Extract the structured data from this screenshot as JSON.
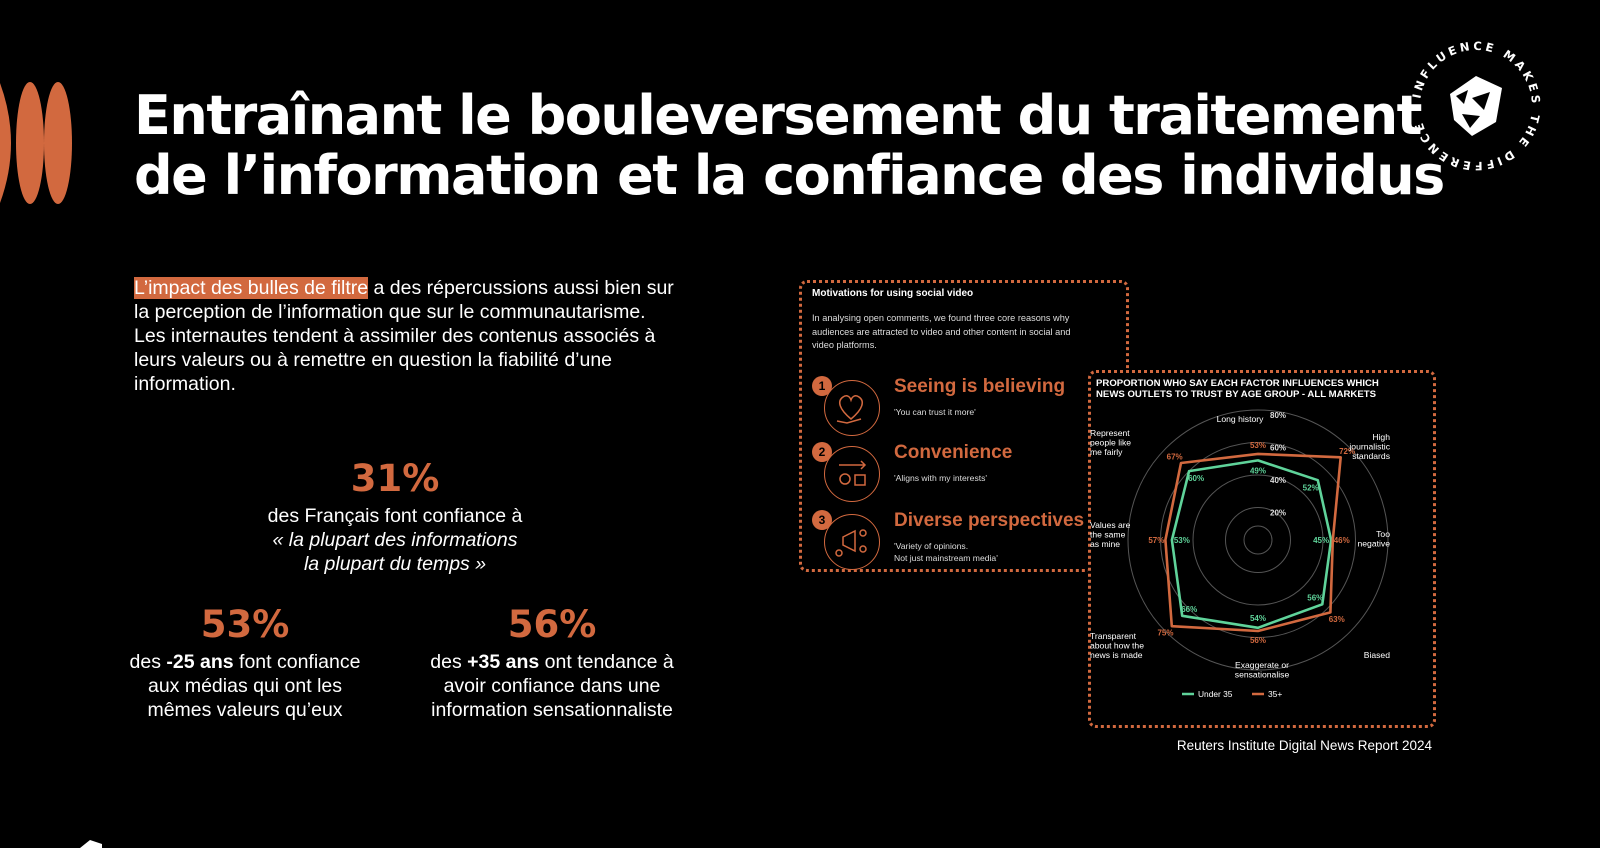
{
  "title": {
    "line1": "Entraînant le bouleversement du traitement",
    "line2": "de l’information et la confiance des individus"
  },
  "badge": {
    "ring_text": "INFLUENCE MAKES THE DIFFERENCE"
  },
  "intro": {
    "highlight": "L’impact des bulles de filtre",
    "line1": " a des répercussions aussi bien sur",
    "line2": "la perception de l’information que sur le communautarisme.",
    "line3": "Les internautes tendent à assimiler des contenus associés à",
    "line4": "leurs valeurs ou à remettre en question la fiabilité d’une",
    "line5": "information."
  },
  "stats": [
    {
      "value": "31%",
      "lines": [
        "des Français font confiance à",
        "« la plupart des informations",
        "la plupart du temps »"
      ]
    },
    {
      "value": "53%",
      "pre": "des ",
      "bold": "-25 ans",
      "post": " font confiance",
      "lines": [
        "aux médias qui ont les",
        "mêmes valeurs qu’eux"
      ]
    },
    {
      "value": "56%",
      "pre": "des ",
      "bold": "+35 ans",
      "post": " ont tendance à",
      "lines": [
        "avoir confiance dans une",
        "information sensationnaliste"
      ]
    }
  ],
  "motivations": {
    "title": "Motivations for using social video",
    "desc_lines": [
      "In analysing open comments, we found three core reasons why",
      "audiences are attracted to video and other content in social and",
      "video platforms."
    ],
    "reasons": [
      {
        "num": "1",
        "title": "Seeing is believing",
        "quote": [
          "'You can trust it more'"
        ],
        "icon": "heart-hand-icon"
      },
      {
        "num": "2",
        "title": "Convenience",
        "quote": [
          "'Aligns with my interests'"
        ],
        "icon": "exchange-people-icon"
      },
      {
        "num": "3",
        "title": "Diverse perspectives",
        "quote": [
          "'Variety of opinions.",
          "Not just mainstream media'"
        ],
        "icon": "megaphone-people-icon"
      }
    ]
  },
  "chart_data": {
    "type": "radar",
    "title": [
      "PROPORTION WHO SAY EACH FACTOR INFLUENCES WHICH",
      "NEWS OUTLETS TO TRUST BY AGE GROUP - ALL MARKETS"
    ],
    "axes": [
      {
        "label": [
          "Long history"
        ]
      },
      {
        "label": [
          "High",
          "journalistic",
          "standards"
        ]
      },
      {
        "label": [
          "Too",
          "negative"
        ]
      },
      {
        "label": [
          "Biased"
        ]
      },
      {
        "label": [
          "Exaggerate or",
          "sensationalise"
        ]
      },
      {
        "label": [
          "Transparent",
          "about how the",
          "news is made"
        ]
      },
      {
        "label": [
          "Values are",
          "the same",
          "as mine"
        ]
      },
      {
        "label": [
          "Represent",
          "people like",
          "me fairly"
        ]
      }
    ],
    "ring_values": [
      20,
      40,
      60,
      80
    ],
    "ring_labels": [
      "20%",
      "40%",
      "60%",
      "80%"
    ],
    "series": [
      {
        "name": "Under 35",
        "color": "#5fd39a",
        "values": [
          49,
          52,
          45,
          56,
          54,
          66,
          53,
          60
        ],
        "labels": [
          "49%",
          "52%",
          "45%",
          "56%",
          "54%",
          "66%",
          "53%",
          "60%"
        ]
      },
      {
        "name": "35+",
        "color": "#d2693f",
        "values": [
          53,
          72,
          46,
          63,
          56,
          75,
          57,
          67
        ],
        "labels": [
          "53%",
          "72%",
          "46%",
          "63%",
          "56%",
          "75%",
          "57%",
          "67%"
        ]
      }
    ]
  },
  "source": "Reuters Institute Digital News Report 2024",
  "colors": {
    "accent": "#d2693f",
    "green": "#5fd39a",
    "background": "#000000"
  }
}
